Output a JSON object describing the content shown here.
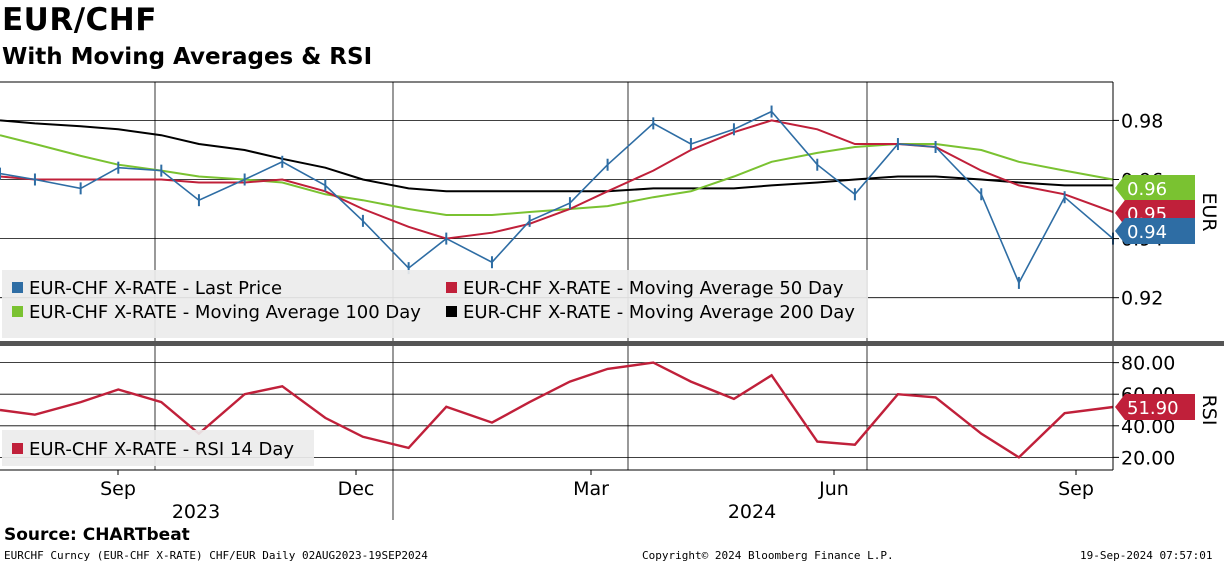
{
  "header": {
    "title": "EUR/CHF",
    "subtitle": "With Moving Averages & RSI"
  },
  "footer": {
    "source": "Source:  CHARTbeat",
    "left": "EURCHF Curncy (EUR-CHF X-RATE) CHF/EUR  Daily 02AUG2023-19SEP2024",
    "center": "Copyright© 2024 Bloomberg Finance L.P.",
    "right": "19-Sep-2024 07:57:01"
  },
  "chart_data": [
    {
      "type": "line",
      "panel": "price",
      "axis_label": "EUR",
      "ylim": [
        0.905,
        0.993
      ],
      "yticks": [
        "0.98",
        "0.96",
        "0.94",
        "0.92"
      ],
      "grid": true,
      "legend_position": "bottom-left",
      "x": [
        "2023-08-02",
        "2023-08-15",
        "2023-09-01",
        "2023-09-15",
        "2023-10-01",
        "2023-10-15",
        "2023-11-01",
        "2023-11-15",
        "2023-12-01",
        "2023-12-15",
        "2024-01-01",
        "2024-01-15",
        "2024-02-01",
        "2024-02-15",
        "2024-03-01",
        "2024-03-15",
        "2024-04-01",
        "2024-04-15",
        "2024-05-01",
        "2024-05-15",
        "2024-06-01",
        "2024-06-15",
        "2024-07-01",
        "2024-07-15",
        "2024-08-01",
        "2024-08-15",
        "2024-09-01",
        "2024-09-19"
      ],
      "series": [
        {
          "name": "EUR-CHF X-RATE - Last Price",
          "color": "#2e6da4",
          "values": [
            0.962,
            0.96,
            0.957,
            0.964,
            0.963,
            0.953,
            0.96,
            0.966,
            0.958,
            0.946,
            0.93,
            0.94,
            0.932,
            0.946,
            0.952,
            0.965,
            0.979,
            0.972,
            0.977,
            0.983,
            0.965,
            0.955,
            0.972,
            0.971,
            0.955,
            0.925,
            0.954,
            0.94
          ]
        },
        {
          "name": "EUR-CHF X-RATE - Moving Average 50 Day",
          "color": "#c0203a",
          "values": [
            0.961,
            0.96,
            0.96,
            0.96,
            0.96,
            0.959,
            0.959,
            0.96,
            0.956,
            0.95,
            0.944,
            0.94,
            0.942,
            0.945,
            0.95,
            0.956,
            0.963,
            0.97,
            0.976,
            0.98,
            0.977,
            0.972,
            0.972,
            0.971,
            0.963,
            0.958,
            0.955,
            0.949
          ]
        },
        {
          "name": "EUR-CHF X-RATE - Moving Average 100 Day",
          "color": "#7ac231",
          "values": [
            0.975,
            0.972,
            0.968,
            0.965,
            0.963,
            0.961,
            0.96,
            0.959,
            0.955,
            0.953,
            0.95,
            0.948,
            0.948,
            0.949,
            0.95,
            0.951,
            0.954,
            0.956,
            0.961,
            0.966,
            0.969,
            0.971,
            0.972,
            0.972,
            0.97,
            0.966,
            0.963,
            0.96
          ]
        },
        {
          "name": "EUR-CHF X-RATE - Moving Average 200 Day",
          "color": "#000000",
          "values": [
            0.98,
            0.979,
            0.978,
            0.977,
            0.975,
            0.972,
            0.97,
            0.967,
            0.964,
            0.96,
            0.957,
            0.956,
            0.956,
            0.956,
            0.956,
            0.956,
            0.957,
            0.957,
            0.957,
            0.958,
            0.959,
            0.96,
            0.961,
            0.961,
            0.96,
            0.959,
            0.958,
            0.958
          ]
        }
      ],
      "last_values": [
        {
          "label": "0.96",
          "color": "#7ac231",
          "value": 0.96
        },
        {
          "label": "0.95",
          "color": "#c0203a",
          "value": 0.949
        },
        {
          "label": "0.94",
          "color": "#2e6da4",
          "value": 0.94
        }
      ]
    },
    {
      "type": "line",
      "panel": "rsi",
      "axis_label": "RSI",
      "ylim": [
        12,
        88
      ],
      "yticks": [
        "80.00",
        "60.00",
        "40.00",
        "20.00"
      ],
      "grid": true,
      "legend_position": "bottom-left",
      "x": [
        "2023-08-02",
        "2023-08-15",
        "2023-09-01",
        "2023-09-15",
        "2023-10-01",
        "2023-10-15",
        "2023-11-01",
        "2023-11-15",
        "2023-12-01",
        "2023-12-15",
        "2024-01-01",
        "2024-01-15",
        "2024-02-01",
        "2024-02-15",
        "2024-03-01",
        "2024-03-15",
        "2024-04-01",
        "2024-04-15",
        "2024-05-01",
        "2024-05-15",
        "2024-06-01",
        "2024-06-15",
        "2024-07-01",
        "2024-07-15",
        "2024-08-01",
        "2024-08-15",
        "2024-09-01",
        "2024-09-19"
      ],
      "series": [
        {
          "name": "EUR-CHF X-RATE - RSI 14 Day",
          "color": "#c0203a",
          "values": [
            50,
            47,
            55,
            63,
            55,
            35,
            60,
            65,
            45,
            33,
            26,
            52,
            42,
            55,
            68,
            76,
            80,
            68,
            57,
            72,
            30,
            28,
            60,
            58,
            35,
            20,
            48,
            51.9
          ]
        }
      ],
      "last_values": [
        {
          "label": "51.90",
          "color": "#c0203a",
          "value": 51.9
        }
      ]
    }
  ],
  "x_axis": {
    "months": [
      "Sep",
      "Dec",
      "Mar",
      "Jun",
      "Sep"
    ],
    "years": [
      "2023",
      "2024"
    ]
  }
}
